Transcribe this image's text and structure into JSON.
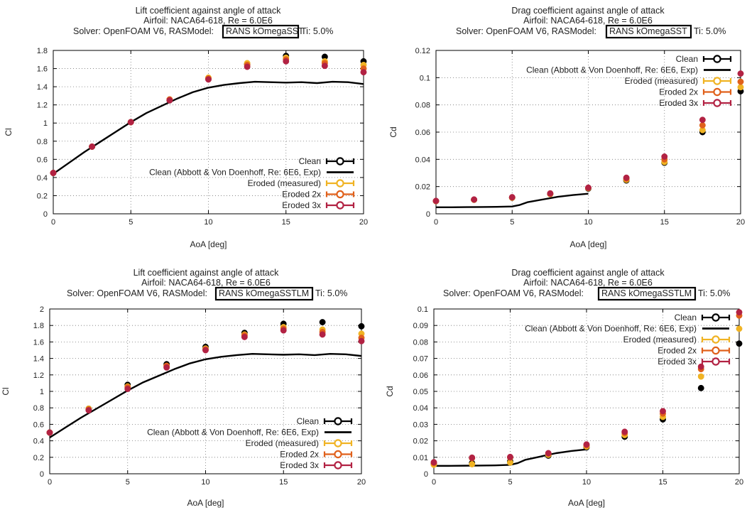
{
  "colors": {
    "clean": "#000000",
    "measured": "#f0b323",
    "eroded2x": "#e0601b",
    "eroded3x": "#b22243",
    "grid": "#777777"
  },
  "chart_data": [
    {
      "type": "scatter",
      "title": [
        "Lift coefficient against angle of attack",
        "Airfoil: NACA64-618, Re = 6.0E6"
      ],
      "solver_line": {
        "prefix": "Solver: OpenFOAM V6, RASModel:",
        "model": "RANS kOmegaSST",
        "suffix": "Ti: 5.0%"
      },
      "xlabel": "AoA [deg]",
      "ylabel": "Cl",
      "xlim": [
        0,
        20
      ],
      "ylim": [
        0,
        1.8
      ],
      "xticks": [
        0,
        5,
        10,
        15,
        20
      ],
      "yticks": [
        0,
        0.2,
        0.4,
        0.6,
        0.8,
        1,
        1.2,
        1.4,
        1.6,
        1.8
      ],
      "grid": true,
      "legend_position": "bottom-right",
      "series": [
        {
          "name": "Clean",
          "kind": "points",
          "color": "clean",
          "x": [
            0,
            2.5,
            5,
            7.5,
            10,
            12.5,
            15,
            17.5,
            20
          ],
          "y": [
            0.45,
            0.74,
            1.01,
            1.25,
            1.49,
            1.65,
            1.74,
            1.73,
            1.68
          ]
        },
        {
          "name": "Clean (Abbott & Von Doenhoff, Re: 6E6, Exp)",
          "kind": "line",
          "color": "clean",
          "x": [
            0,
            1,
            2,
            3,
            4,
            5,
            6,
            7,
            8,
            9,
            10,
            11,
            12,
            13,
            14,
            15,
            16,
            17,
            18,
            19,
            20
          ],
          "y": [
            0.44,
            0.56,
            0.68,
            0.79,
            0.9,
            1.01,
            1.11,
            1.19,
            1.27,
            1.34,
            1.39,
            1.42,
            1.44,
            1.455,
            1.45,
            1.445,
            1.45,
            1.44,
            1.455,
            1.45,
            1.43
          ]
        },
        {
          "name": "Eroded (measured)",
          "kind": "points",
          "color": "measured",
          "x": [
            0,
            2.5,
            5,
            7.5,
            10,
            12.5,
            15,
            17.5,
            20
          ],
          "y": [
            0.45,
            0.74,
            1.01,
            1.26,
            1.5,
            1.66,
            1.72,
            1.68,
            1.64
          ]
        },
        {
          "name": "Eroded 2x",
          "kind": "points",
          "color": "eroded2x",
          "x": [
            0,
            2.5,
            5,
            7.5,
            10,
            12.5,
            15,
            17.5,
            20
          ],
          "y": [
            0.45,
            0.74,
            1.01,
            1.26,
            1.49,
            1.64,
            1.7,
            1.66,
            1.6
          ]
        },
        {
          "name": "Eroded 3x",
          "kind": "points",
          "color": "eroded3x",
          "x": [
            0,
            2.5,
            5,
            7.5,
            10,
            12.5,
            15,
            17.5,
            20
          ],
          "y": [
            0.45,
            0.74,
            1.01,
            1.25,
            1.48,
            1.62,
            1.68,
            1.63,
            1.56
          ]
        }
      ]
    },
    {
      "type": "scatter",
      "title": [
        "Drag coefficient against angle of attack",
        "Airfoil: NACA64-618, Re = 6.0E6"
      ],
      "solver_line": {
        "prefix": "Solver: OpenFOAM V6, RASModel:",
        "model": "RANS kOmegaSST",
        "suffix": "Ti: 5.0%"
      },
      "xlabel": "AoA [deg]",
      "ylabel": "Cd",
      "xlim": [
        0,
        20
      ],
      "ylim": [
        0,
        0.12
      ],
      "xticks": [
        0,
        5,
        10,
        15,
        20
      ],
      "yticks": [
        0,
        0.02,
        0.04,
        0.06,
        0.08,
        0.1,
        0.12
      ],
      "grid": true,
      "legend_position": "top-right",
      "series": [
        {
          "name": "Clean",
          "kind": "points",
          "color": "clean",
          "x": [
            0,
            2.5,
            5,
            7.5,
            10,
            12.5,
            15,
            17.5,
            20
          ],
          "y": [
            0.0093,
            0.0103,
            0.0118,
            0.0145,
            0.0185,
            0.0245,
            0.0375,
            0.06,
            0.09
          ]
        },
        {
          "name": "Clean (Abbott & Von Doenhoff, Re: 6E6, Exp)",
          "kind": "line",
          "color": "clean",
          "x": [
            0,
            1,
            2,
            3,
            4,
            5,
            5.5,
            6,
            7,
            8,
            9,
            10
          ],
          "y": [
            0.0048,
            0.0048,
            0.0049,
            0.005,
            0.0051,
            0.0054,
            0.0065,
            0.0085,
            0.0105,
            0.0125,
            0.0138,
            0.0148
          ]
        },
        {
          "name": "Eroded (measured)",
          "kind": "points",
          "color": "measured",
          "x": [
            0,
            2.5,
            5,
            7.5,
            10,
            12.5,
            15,
            17.5,
            20
          ],
          "y": [
            0.0093,
            0.0103,
            0.0118,
            0.0145,
            0.0188,
            0.025,
            0.038,
            0.0615,
            0.093
          ]
        },
        {
          "name": "Eroded 2x",
          "kind": "points",
          "color": "eroded2x",
          "x": [
            0,
            2.5,
            5,
            7.5,
            10,
            12.5,
            15,
            17.5,
            20
          ],
          "y": [
            0.0094,
            0.0104,
            0.012,
            0.0147,
            0.019,
            0.0258,
            0.04,
            0.065,
            0.097
          ]
        },
        {
          "name": "Eroded 3x",
          "kind": "points",
          "color": "eroded3x",
          "x": [
            0,
            2.5,
            5,
            7.5,
            10,
            12.5,
            15,
            17.5,
            20
          ],
          "y": [
            0.0095,
            0.0105,
            0.0122,
            0.015,
            0.0192,
            0.0265,
            0.042,
            0.069,
            0.103
          ]
        }
      ]
    },
    {
      "type": "scatter",
      "title": [
        "Lift coefficient against angle of attack",
        "Airfoil: NACA64-618, Re = 6.0E6"
      ],
      "solver_line": {
        "prefix": "Solver: OpenFOAM V6, RASModel:",
        "model": "RANS kOmegaSSTLM",
        "suffix": "Ti: 5.0%"
      },
      "xlabel": "AoA [deg]",
      "ylabel": "Cl",
      "xlim": [
        0,
        20
      ],
      "ylim": [
        0,
        2
      ],
      "xticks": [
        0,
        5,
        10,
        15,
        20
      ],
      "yticks": [
        0,
        0.2,
        0.4,
        0.6,
        0.8,
        1,
        1.2,
        1.4,
        1.6,
        1.8,
        2
      ],
      "grid": true,
      "legend_position": "bottom-right",
      "series": [
        {
          "name": "Clean",
          "kind": "points",
          "color": "clean",
          "x": [
            0,
            2.5,
            5,
            7.5,
            10,
            12.5,
            15,
            17.5,
            20
          ],
          "y": [
            0.5,
            0.79,
            1.08,
            1.33,
            1.54,
            1.71,
            1.82,
            1.84,
            1.79
          ]
        },
        {
          "name": "Clean (Abbott & Von Doenhoff, Re: 6E6, Exp)",
          "kind": "line",
          "color": "clean",
          "x": [
            0,
            1,
            2,
            3,
            4,
            5,
            6,
            7,
            8,
            9,
            10,
            11,
            12,
            13,
            14,
            15,
            16,
            17,
            18,
            19,
            20
          ],
          "y": [
            0.44,
            0.56,
            0.68,
            0.79,
            0.9,
            1.01,
            1.11,
            1.19,
            1.27,
            1.34,
            1.39,
            1.42,
            1.44,
            1.455,
            1.45,
            1.445,
            1.45,
            1.44,
            1.455,
            1.45,
            1.43
          ]
        },
        {
          "name": "Eroded (measured)",
          "kind": "points",
          "color": "measured",
          "x": [
            0,
            2.5,
            5,
            7.5,
            10,
            12.5,
            15,
            17.5,
            20
          ],
          "y": [
            0.5,
            0.79,
            1.06,
            1.31,
            1.52,
            1.69,
            1.78,
            1.75,
            1.7
          ]
        },
        {
          "name": "Eroded 2x",
          "kind": "points",
          "color": "eroded2x",
          "x": [
            0,
            2.5,
            5,
            7.5,
            10,
            12.5,
            15,
            17.5,
            20
          ],
          "y": [
            0.5,
            0.78,
            1.05,
            1.31,
            1.51,
            1.68,
            1.76,
            1.72,
            1.65
          ]
        },
        {
          "name": "Eroded 3x",
          "kind": "points",
          "color": "eroded3x",
          "x": [
            0,
            2.5,
            5,
            7.5,
            10,
            12.5,
            15,
            17.5,
            20
          ],
          "y": [
            0.5,
            0.77,
            1.03,
            1.29,
            1.5,
            1.66,
            1.74,
            1.69,
            1.61
          ]
        }
      ]
    },
    {
      "type": "scatter",
      "title": [
        "Drag coefficient against angle of attack",
        "Airfoil: NACA64-618, Re = 6.0E6"
      ],
      "solver_line": {
        "prefix": "Solver: OpenFOAM V6, RASModel:",
        "model": "RANS kOmegaSSTLM",
        "suffix": "Ti: 5.0%"
      },
      "xlabel": "AoA [deg]",
      "ylabel": "Cd",
      "xlim": [
        0,
        20
      ],
      "ylim": [
        0,
        0.1
      ],
      "xticks": [
        0,
        5,
        10,
        15,
        20
      ],
      "yticks": [
        0,
        0.01,
        0.02,
        0.03,
        0.04,
        0.05,
        0.06,
        0.07,
        0.08,
        0.09,
        0.1
      ],
      "grid": true,
      "legend_position": "top-right",
      "series": [
        {
          "name": "Clean",
          "kind": "points",
          "color": "clean",
          "x": [
            0,
            2.5,
            5,
            7.5,
            10,
            12.5,
            15,
            17.5,
            20
          ],
          "y": [
            0.006,
            0.0065,
            0.0075,
            0.011,
            0.016,
            0.0225,
            0.033,
            0.052,
            0.079
          ]
        },
        {
          "name": "Clean (Abbott & Von Doenhoff, Re: 6E6, Exp)",
          "kind": "line",
          "color": "clean",
          "x": [
            0,
            1,
            2,
            3,
            4,
            5,
            5.5,
            6,
            7,
            8,
            9,
            10
          ],
          "y": [
            0.0048,
            0.0048,
            0.0049,
            0.005,
            0.0051,
            0.0054,
            0.0065,
            0.0085,
            0.0105,
            0.0125,
            0.0138,
            0.0148
          ]
        },
        {
          "name": "Eroded (measured)",
          "kind": "points",
          "color": "measured",
          "x": [
            0,
            2.5,
            5,
            7.5,
            10,
            12.5,
            15,
            17.5,
            20
          ],
          "y": [
            0.0055,
            0.0058,
            0.0068,
            0.0115,
            0.0165,
            0.0235,
            0.0345,
            0.059,
            0.088
          ]
        },
        {
          "name": "Eroded 2x",
          "kind": "points",
          "color": "eroded2x",
          "x": [
            0,
            2.5,
            5,
            7.5,
            10,
            12.5,
            15,
            17.5,
            20
          ],
          "y": [
            0.0065,
            0.0095,
            0.0098,
            0.0122,
            0.0172,
            0.0248,
            0.0365,
            0.0635,
            0.096
          ]
        },
        {
          "name": "Eroded 3x",
          "kind": "points",
          "color": "eroded3x",
          "x": [
            0,
            2.5,
            5,
            7.5,
            10,
            12.5,
            15,
            17.5,
            20
          ],
          "y": [
            0.007,
            0.0098,
            0.0102,
            0.0125,
            0.0178,
            0.0255,
            0.038,
            0.065,
            0.098
          ]
        }
      ]
    }
  ]
}
